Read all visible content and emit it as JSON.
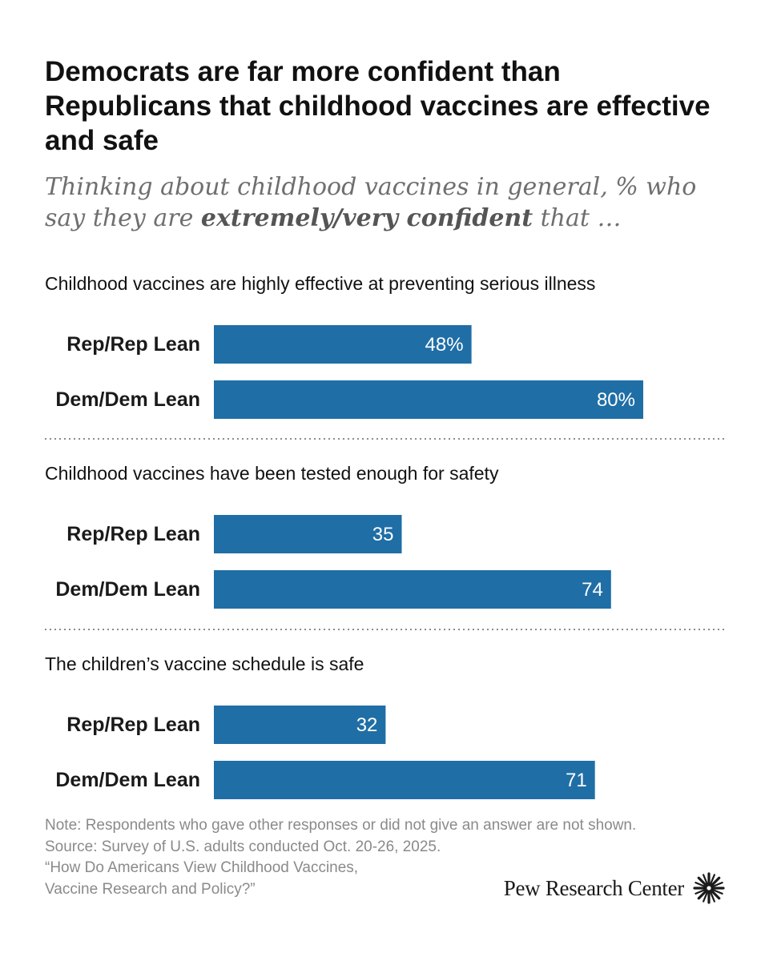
{
  "header": {
    "title": "Democrats are far more confident than Republicans that childhood vaccines are effective and safe",
    "subtitle_pre": "Thinking about childhood vaccines in general, % who say they are ",
    "subtitle_bold": "extremely/very confident",
    "subtitle_post": " that …"
  },
  "chart_data": {
    "type": "bar",
    "orientation": "horizontal",
    "bar_color": "#1f6ea6",
    "xlim": [
      0,
      100
    ],
    "grid": false,
    "groups": [
      {
        "title": "Childhood vaccines are highly effective at preventing serious illness",
        "bars": [
          {
            "label": "Rep/Rep Lean",
            "value": 48,
            "display": "48%"
          },
          {
            "label": "Dem/Dem Lean",
            "value": 80,
            "display": "80%"
          }
        ]
      },
      {
        "title": "Childhood vaccines have been tested enough for safety",
        "bars": [
          {
            "label": "Rep/Rep Lean",
            "value": 35,
            "display": "35"
          },
          {
            "label": "Dem/Dem Lean",
            "value": 74,
            "display": "74"
          }
        ]
      },
      {
        "title": "The children’s vaccine schedule is safe",
        "bars": [
          {
            "label": "Rep/Rep Lean",
            "value": 32,
            "display": "32"
          },
          {
            "label": "Dem/Dem Lean",
            "value": 71,
            "display": "71"
          }
        ]
      }
    ]
  },
  "footer": {
    "note": "Note: Respondents who gave other responses or did not give an answer are not shown.",
    "source": "Source: Survey of U.S. adults conducted Oct. 20-26, 2025.",
    "report_line1": "“How Do Americans View Childhood Vaccines,",
    "report_line2": "Vaccine Research and Policy?”",
    "logo_text": "Pew Research Center",
    "logo_icon": "sunburst-icon"
  }
}
